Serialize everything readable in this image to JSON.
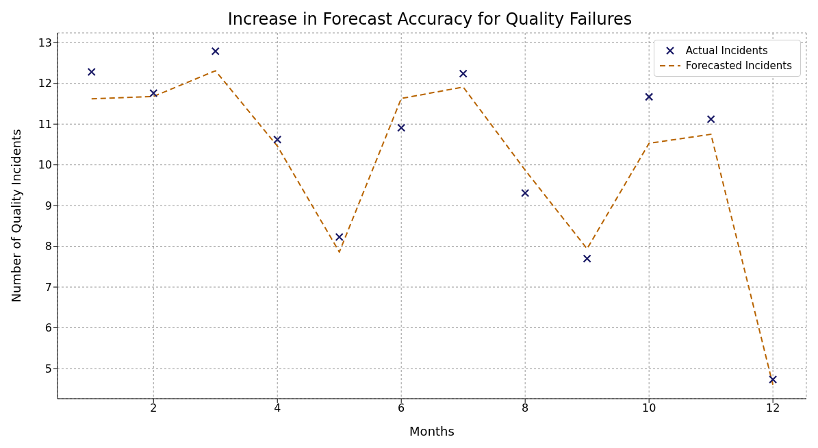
{
  "chart_data": {
    "type": "line",
    "title": "Increase in Forecast Accuracy for Quality Failures",
    "xlabel": "Months",
    "ylabel": "Number of Quality Incidents",
    "x": [
      1,
      2,
      3,
      4,
      5,
      6,
      7,
      8,
      9,
      10,
      11,
      12
    ],
    "series": [
      {
        "name": "Actual Incidents",
        "type": "scatter",
        "marker": "cross",
        "color": "#1a1a66",
        "values": [
          12.28,
          11.76,
          12.79,
          10.62,
          8.23,
          10.91,
          12.24,
          9.31,
          7.7,
          11.67,
          11.12,
          4.73
        ]
      },
      {
        "name": "Forecasted Incidents",
        "line_style": "dashed",
        "color": "#b86400",
        "values": [
          11.62,
          11.68,
          12.31,
          10.46,
          7.86,
          11.63,
          11.91,
          9.87,
          7.94,
          10.53,
          10.75,
          4.6
        ]
      }
    ],
    "xlim": [
      0.45,
      12.54
    ],
    "xticks": [
      2,
      4,
      6,
      8,
      10,
      12
    ],
    "ylim": [
      4.26,
      13.24
    ],
    "yticks": [
      5,
      6,
      7,
      8,
      9,
      10,
      11,
      12,
      13
    ],
    "grid": true,
    "legend": "top right"
  }
}
